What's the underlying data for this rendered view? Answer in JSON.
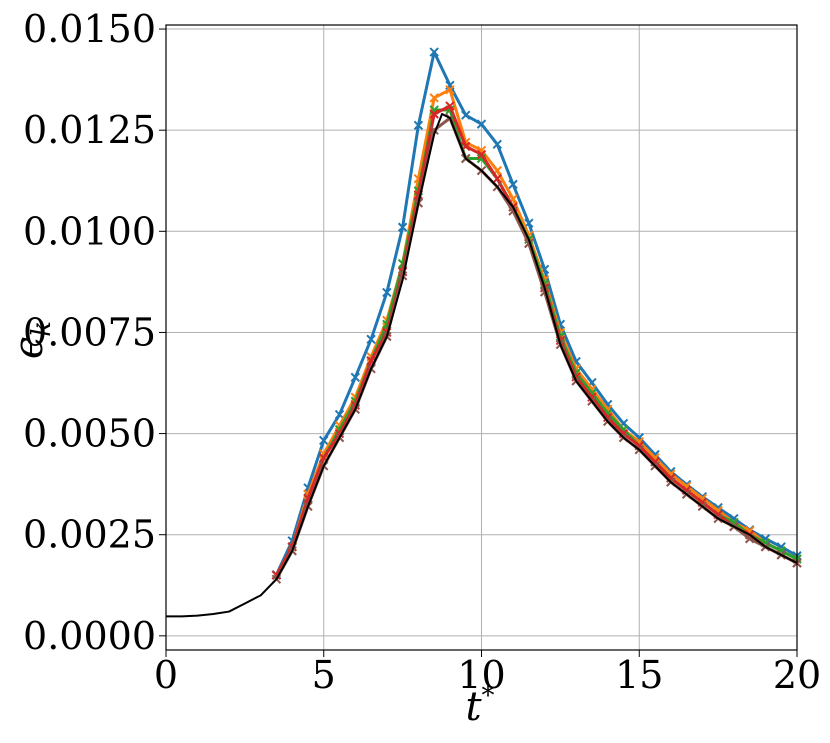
{
  "chart_data": {
    "type": "line",
    "xlabel": {
      "symbol": "t",
      "superscript": "*"
    },
    "ylabel": {
      "symbol": "ϵ",
      "subscript": "k"
    },
    "xlim": [
      0,
      20
    ],
    "ylim": [
      -0.00035,
      0.0151
    ],
    "xticks": [
      0,
      5,
      10,
      15,
      20
    ],
    "yticks": [
      {
        "value": 0,
        "label": "0.0000"
      },
      {
        "value": 0.0025,
        "label": "0.0025"
      },
      {
        "value": 0.005,
        "label": "0.0050"
      },
      {
        "value": 0.0075,
        "label": "0.0075"
      },
      {
        "value": 0.01,
        "label": "0.0100"
      },
      {
        "value": 0.0125,
        "label": "0.0125"
      },
      {
        "value": 0.015,
        "label": "0.0150"
      }
    ],
    "grid": true,
    "series": [
      {
        "color": "#1f77b4",
        "marker": "x",
        "x": [
          3.5,
          4,
          4.5,
          5,
          5.5,
          6,
          6.5,
          7,
          7.5,
          8,
          8.5,
          9,
          9.5,
          10,
          10.5,
          11,
          11.5,
          12,
          12.5,
          13,
          13.5,
          14,
          14.5,
          15,
          15.5,
          16,
          16.5,
          17,
          17.5,
          18,
          18.5,
          19,
          19.5,
          20
        ],
        "values": [
          0.00151,
          0.00235,
          0.00366,
          0.00483,
          0.00547,
          0.00639,
          0.00733,
          0.00849,
          0.0101,
          0.01262,
          0.01443,
          0.01361,
          0.01287,
          0.01265,
          0.01215,
          0.01116,
          0.0102,
          0.00906,
          0.0077,
          0.00678,
          0.00626,
          0.00572,
          0.00525,
          0.0049,
          0.00448,
          0.00406,
          0.00374,
          0.00344,
          0.00317,
          0.0029,
          0.00262,
          0.0024,
          0.0022,
          0.00198
        ]
      },
      {
        "color": "#ff7f0e",
        "marker": "x",
        "x": [
          3.5,
          4,
          4.5,
          5,
          5.5,
          6,
          6.5,
          7,
          7.5,
          8,
          8.5,
          9,
          9.5,
          10,
          10.5,
          11,
          11.5,
          12,
          12.5,
          13,
          13.5,
          14,
          14.5,
          15,
          15.5,
          16,
          16.5,
          17,
          17.5,
          18,
          18.5,
          19,
          19.5,
          20
        ],
        "values": [
          0.0015,
          0.0022,
          0.0035,
          0.0045,
          0.0052,
          0.0059,
          0.0069,
          0.0078,
          0.0092,
          0.0113,
          0.0133,
          0.0135,
          0.0122,
          0.012,
          0.0115,
          0.0108,
          0.0099,
          0.0088,
          0.0075,
          0.0066,
          0.0061,
          0.0056,
          0.0051,
          0.0048,
          0.0044,
          0.004,
          0.0037,
          0.0034,
          0.0031,
          0.0028,
          0.0026,
          0.0023,
          0.0021,
          0.0019
        ]
      },
      {
        "color": "#2ca02c",
        "marker": "x",
        "x": [
          3.5,
          4,
          4.5,
          5,
          5.5,
          6,
          6.5,
          7,
          7.5,
          8,
          8.5,
          9,
          9.5,
          10,
          10.5,
          11,
          11.5,
          12,
          12.5,
          13,
          13.5,
          14,
          14.5,
          15,
          15.5,
          16,
          16.5,
          17,
          17.5,
          18,
          18.5,
          19,
          19.5,
          20
        ],
        "values": [
          0.0015,
          0.0022,
          0.0034,
          0.0044,
          0.0051,
          0.0058,
          0.0068,
          0.0077,
          0.0092,
          0.011,
          0.013,
          0.013,
          0.0118,
          0.0118,
          0.0113,
          0.0106,
          0.0098,
          0.0087,
          0.0074,
          0.0065,
          0.006,
          0.0055,
          0.0051,
          0.0047,
          0.0043,
          0.0039,
          0.0036,
          0.0033,
          0.003,
          0.0028,
          0.0025,
          0.0023,
          0.0021,
          0.0019
        ]
      },
      {
        "color": "#d62728",
        "marker": "x",
        "x": [
          3.5,
          4,
          4.5,
          5,
          5.5,
          6,
          6.5,
          7,
          7.5,
          8,
          8.5,
          9,
          9.5,
          10,
          10.5,
          11,
          11.5,
          12,
          12.5,
          13,
          13.5,
          14,
          14.5,
          15,
          15.5,
          16,
          16.5,
          17,
          17.5,
          18,
          18.5,
          19,
          19.5,
          20
        ],
        "values": [
          0.0015,
          0.0022,
          0.0034,
          0.0044,
          0.005,
          0.0057,
          0.0068,
          0.0075,
          0.009,
          0.0109,
          0.0129,
          0.0131,
          0.0121,
          0.0119,
          0.0113,
          0.0106,
          0.0097,
          0.0086,
          0.0073,
          0.0064,
          0.0059,
          0.0054,
          0.005,
          0.0047,
          0.0043,
          0.0039,
          0.0036,
          0.0033,
          0.003,
          0.0027,
          0.0025,
          0.0022,
          0.002,
          0.0018
        ]
      },
      {
        "color": "#8c564b",
        "marker": "x",
        "x": [
          3.5,
          4,
          4.5,
          5,
          5.5,
          6,
          6.5,
          7,
          7.5,
          8,
          8.5,
          9,
          9.5,
          10,
          10.5,
          11,
          11.5,
          12,
          12.5,
          13,
          13.5,
          14,
          14.5,
          15,
          15.5,
          16,
          16.5,
          17,
          17.5,
          18,
          18.5,
          19,
          19.5,
          20
        ],
        "values": [
          0.0014,
          0.0021,
          0.0032,
          0.0042,
          0.0049,
          0.0056,
          0.0066,
          0.0074,
          0.0089,
          0.0107,
          0.0125,
          0.0128,
          0.0118,
          0.0115,
          0.0111,
          0.0105,
          0.0097,
          0.0085,
          0.0072,
          0.0063,
          0.0058,
          0.0053,
          0.0049,
          0.0046,
          0.0042,
          0.0038,
          0.0035,
          0.0032,
          0.0029,
          0.0027,
          0.0024,
          0.0022,
          0.002,
          0.0018
        ]
      },
      {
        "color": "#000000",
        "x": [
          0,
          0.5,
          1,
          1.5,
          2,
          2.5,
          3,
          3.5,
          4,
          4.5,
          5,
          5.5,
          6,
          6.5,
          7,
          7.5,
          8,
          8.5,
          8.75,
          9,
          9.5,
          10,
          10.5,
          11,
          11.5,
          12,
          12.5,
          13,
          13.5,
          14,
          14.5,
          15,
          15.5,
          16,
          16.5,
          17,
          17.5,
          18,
          18.5,
          19,
          19.5,
          20
        ],
        "values": [
          0.00048,
          0.00048,
          0.0005,
          0.00054,
          0.0006,
          0.0008,
          0.001,
          0.0014,
          0.0021,
          0.0032,
          0.0042,
          0.0049,
          0.0056,
          0.0066,
          0.0074,
          0.0088,
          0.0107,
          0.0124,
          0.0129,
          0.0128,
          0.0118,
          0.0115,
          0.0111,
          0.0106,
          0.0098,
          0.0086,
          0.0072,
          0.0063,
          0.0058,
          0.0053,
          0.0049,
          0.0046,
          0.0042,
          0.0038,
          0.0035,
          0.0032,
          0.0029,
          0.0027,
          0.0025,
          0.0022,
          0.002,
          0.0018
        ]
      }
    ]
  }
}
